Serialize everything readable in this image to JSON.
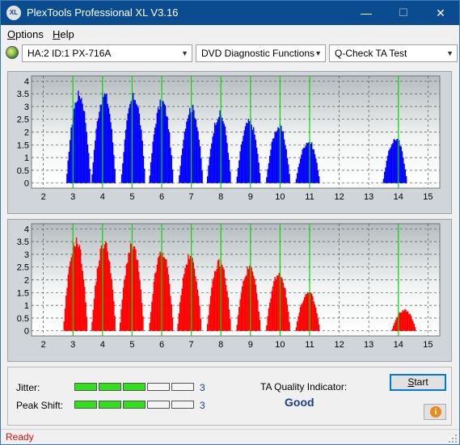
{
  "window": {
    "title": "PlexTools Professional XL V3.16",
    "app_icon_text": "XL",
    "minimize_glyph": "—",
    "maximize_glyph": "☐",
    "close_glyph": "✕"
  },
  "menu": {
    "options_key": "O",
    "options_rest": "ptions",
    "help_key": "H",
    "help_rest": "elp"
  },
  "toolbar": {
    "drive": "HA:2 ID:1  PX-716A",
    "function": "DVD Diagnostic Functions",
    "test": "Q-Check TA Test"
  },
  "colors": {
    "land_series": "#0000ff",
    "groove_series": "#ff0000",
    "marker_lines": "#00dd00",
    "indicator_on": "#2fe01b",
    "quality_text": "#1c3c8c",
    "status_text": "#d01010"
  },
  "chart_data": [
    {
      "type": "bar",
      "series_color": "#0000ff",
      "x_ticks": [
        2,
        3,
        4,
        5,
        6,
        7,
        8,
        9,
        10,
        11,
        12,
        13,
        14,
        15
      ],
      "y_ticks": [
        "0",
        "0.5",
        "1",
        "1.5",
        "2",
        "2.5",
        "3",
        "3.5",
        "4"
      ],
      "xlim": [
        1.6,
        15.4
      ],
      "ylim": [
        -0.2,
        4.2
      ],
      "marker_lines_x": [
        3,
        4,
        5,
        6,
        7,
        8,
        9,
        10,
        11,
        14
      ],
      "grid": true,
      "peaks": [
        {
          "x": 3.2,
          "height": 3.6
        },
        {
          "x": 4.05,
          "height": 3.6
        },
        {
          "x": 5.05,
          "height": 3.5
        },
        {
          "x": 6.0,
          "height": 3.3
        },
        {
          "x": 7.0,
          "height": 3.05
        },
        {
          "x": 7.95,
          "height": 2.8
        },
        {
          "x": 8.95,
          "height": 2.5
        },
        {
          "x": 9.95,
          "height": 2.3
        },
        {
          "x": 10.95,
          "height": 1.7
        },
        {
          "x": 13.9,
          "height": 1.8
        }
      ]
    },
    {
      "type": "bar",
      "series_color": "#ff0000",
      "x_ticks": [
        2,
        3,
        4,
        5,
        6,
        7,
        8,
        9,
        10,
        11,
        12,
        13,
        14,
        15
      ],
      "y_ticks": [
        "0",
        "0.5",
        "1",
        "1.5",
        "2",
        "2.5",
        "3",
        "3.5",
        "4"
      ],
      "xlim": [
        1.6,
        15.4
      ],
      "ylim": [
        -0.2,
        4.2
      ],
      "marker_lines_x": [
        3,
        4,
        5,
        6,
        7,
        8,
        9,
        10,
        11,
        14
      ],
      "grid": true,
      "peaks": [
        {
          "x": 3.1,
          "height": 3.65
        },
        {
          "x": 4.05,
          "height": 3.55
        },
        {
          "x": 5.0,
          "height": 3.45
        },
        {
          "x": 6.0,
          "height": 3.2
        },
        {
          "x": 6.95,
          "height": 3.0
        },
        {
          "x": 7.95,
          "height": 2.8
        },
        {
          "x": 8.95,
          "height": 2.55
        },
        {
          "x": 9.95,
          "height": 2.35
        },
        {
          "x": 10.95,
          "height": 1.55
        },
        {
          "x": 14.2,
          "height": 0.85
        }
      ]
    }
  ],
  "results": {
    "jitter_label": "Jitter:",
    "jitter_value": "3",
    "jitter_level": 3,
    "peak_shift_label": "Peak Shift:",
    "peak_shift_value": "3",
    "peak_shift_level": 3,
    "segments_total": 5,
    "ta_quality_label": "TA Quality Indicator:",
    "ta_quality_value": "Good",
    "start_key": "S",
    "start_rest": "tart",
    "info_icon_text": "i"
  },
  "status": {
    "text": "Ready"
  }
}
